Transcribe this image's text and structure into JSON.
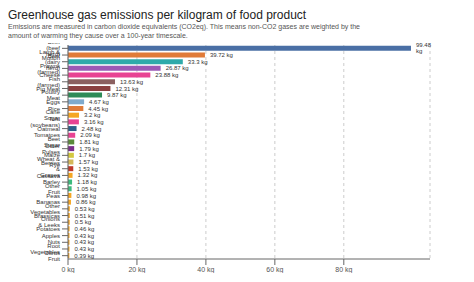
{
  "chart_data": {
    "type": "bar",
    "title": "Greenhouse gas emissions per kilogram of food product",
    "subtitle": "Emissions are measured in carbon dioxide equivalents (CO2eq). This means non-CO2 gases are weighted by the\namount of warming they cause over a 100-year timescale.",
    "orientation": "horizontal",
    "categories": [
      "Citrus Fruit",
      "Root Vegetables",
      "Nuts",
      "Apples",
      "Potatoes",
      "Onions & Leeks",
      "Brassicas",
      "Other Vegetables",
      "Bananas",
      "Peas",
      "Other Fruit",
      "Barley",
      "Cassava",
      "Berries & Grapes",
      "Wheat & Rye",
      "Maize",
      "Other Pulses",
      "Beet Sugar",
      "Tomatoes",
      "Oatmeal",
      "Tofu (soybeans)",
      "Cane Sugar",
      "Rice",
      "Eggs",
      "Poultry Meat",
      "Pig Meat",
      "Fish (farmed)",
      "Cheese",
      "Prawns (farmed)",
      "Beef (dairy herd)",
      "Lamb & Mutton",
      "Beef (beef herd)"
    ],
    "values": [
      0.39,
      0.43,
      0.43,
      0.43,
      0.46,
      0.5,
      0.51,
      0.53,
      0.86,
      0.98,
      1.05,
      1.18,
      1.32,
      1.53,
      1.57,
      1.7,
      1.79,
      1.81,
      2.09,
      2.48,
      3.16,
      3.2,
      4.45,
      4.67,
      9.87,
      12.31,
      13.63,
      23.88,
      26.87,
      33.3,
      39.72,
      99.48
    ],
    "value_labels": [
      "0.39 kg",
      "0.43 kg",
      "0.43 kg",
      "0.43 kg",
      "0.46 kg",
      "0.5 kg",
      "0.51 kg",
      "0.53 kg",
      "0.86 kg",
      "0.98 kg",
      "1.05 kg",
      "1.18 kg",
      "1.32 kg",
      "1.53 kg",
      "1.57 kg",
      "1.7 kg",
      "1.79 kg",
      "1.81 kg",
      "2.09 kg",
      "2.48 kg",
      "3.16 kg",
      "3.2 kg",
      "4.45 kg",
      "4.67 kg",
      "9.87 kg",
      "12.31 kg",
      "13.63 kg",
      "23.88 kg",
      "26.87 kg",
      "33.3 kg",
      "39.72 kg",
      "99.48 kg"
    ],
    "colors": [
      "#f5a623",
      "#f5a623",
      "#f5a623",
      "#f5a623",
      "#f5a623",
      "#f5a623",
      "#f5a623",
      "#f5a623",
      "#f5a623",
      "#f5a623",
      "#3dba7d",
      "#3dba7d",
      "#f5a623",
      "#c0392b",
      "#d4b85a",
      "#d4c840",
      "#7b2d8b",
      "#5a8a3a",
      "#e84393",
      "#2c5f8a",
      "#e84393",
      "#f5a623",
      "#e07b39",
      "#7faacc",
      "#2e8b57",
      "#8b4040",
      "#8b6060",
      "#e84393",
      "#9b59b6",
      "#2eaaaa",
      "#e07b39",
      "#4a6fa5"
    ],
    "xlim": [
      0,
      105
    ],
    "xticks": [
      {
        "value": 0,
        "label": "0 kg"
      },
      {
        "value": 20,
        "label": "20 kg"
      },
      {
        "value": 40,
        "label": "40 kg"
      },
      {
        "value": 60,
        "label": "60 kg"
      },
      {
        "value": 80,
        "label": "80 kg"
      }
    ],
    "grid": true,
    "data_labels": true
  }
}
